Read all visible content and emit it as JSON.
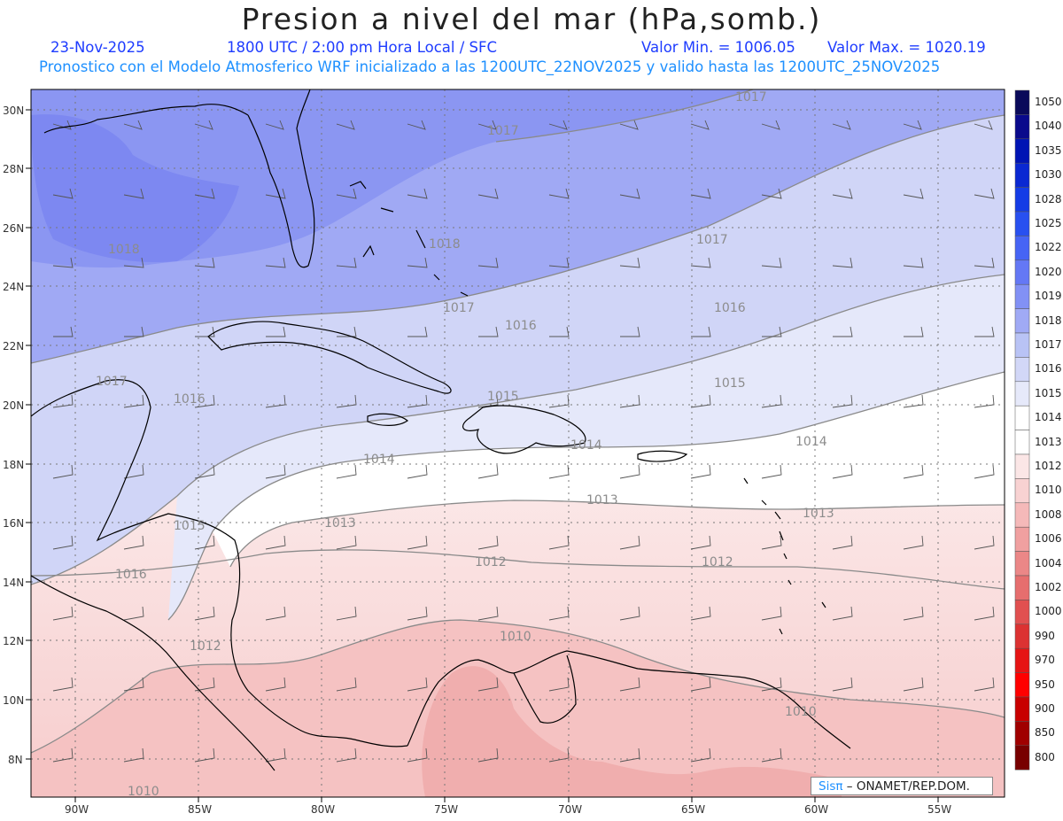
{
  "header": {
    "title": "Presion a nivel del mar (hPa,somb.)",
    "date": "23-Nov-2025",
    "time": "1800 UTC / 2:00 pm Hora Local / SFC",
    "value_min": "Valor Min. = 1006.05",
    "value_max": "Valor Max. = 1020.19",
    "forecast_info": "Pronostico con el Modelo Atmosferico WRF inicializado a las 1200UTC_22NOV2025 y valido hasta las  1200UTC_25NOV2025"
  },
  "axes": {
    "lon_labels": [
      "90W",
      "85W",
      "80W",
      "75W",
      "70W",
      "65W",
      "60W",
      "55W"
    ],
    "lat_labels": [
      "30N",
      "28N",
      "26N",
      "24N",
      "22N",
      "20N",
      "18N",
      "16N",
      "14N",
      "12N",
      "10N",
      "8N"
    ]
  },
  "contour_labels": [
    "1017",
    "1017",
    "1017",
    "1018",
    "1018",
    "1017",
    "1016",
    "1016",
    "1017",
    "1016",
    "1015",
    "1015",
    "1014",
    "1014",
    "1014",
    "1013",
    "1013",
    "1013",
    "1015",
    "1012",
    "1012",
    "1016",
    "1012",
    "1010",
    "1010",
    "1010"
  ],
  "colorbar": {
    "levels": [
      "1050",
      "1040",
      "1035",
      "1030",
      "1028",
      "1025",
      "1022",
      "1020",
      "1019",
      "1018",
      "1017",
      "1016",
      "1015",
      "1014",
      "1013",
      "1012",
      "1010",
      "1008",
      "1006",
      "1004",
      "1002",
      "1000",
      "990",
      "970",
      "950",
      "900",
      "850",
      "800"
    ],
    "colors": [
      "#0a0a5a",
      "#0a0a8c",
      "#0014b4",
      "#0a28d2",
      "#143ce6",
      "#2850f0",
      "#4664f5",
      "#6478f5",
      "#8291f5",
      "#a0aaf5",
      "#b9c3f5",
      "#d2d7f7",
      "#e6e9fa",
      "#ffffff",
      "#ffffff",
      "#fbe6e6",
      "#f8d2d2",
      "#f5b9b9",
      "#f0a0a0",
      "#eb8787",
      "#e66e6e",
      "#e15050",
      "#dc3232",
      "#e61414",
      "#ff0000",
      "#c80000",
      "#a00000",
      "#780000"
    ]
  },
  "credit": {
    "logo": "Sisπ",
    "text": "– ONAMET/REP.DOM."
  }
}
